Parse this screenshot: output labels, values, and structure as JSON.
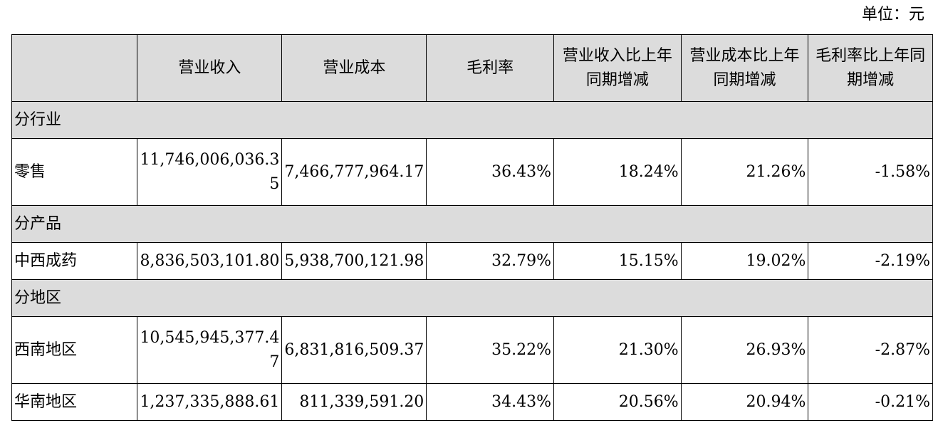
{
  "unit_label": "单位：元",
  "headers": [
    "",
    "营业收入",
    "营业成本",
    "毛利率",
    "营业收入比上年同期增减",
    "营业成本比上年同期增减",
    "毛利率比上年同期增减"
  ],
  "sections": [
    {
      "title": "分行业",
      "rows": [
        {
          "label": "零售",
          "revenue": "11,746,006,036.35",
          "cost": "7,466,777,964.17",
          "margin": "36.43%",
          "rev_change": "18.24%",
          "cost_change": "21.26%",
          "margin_change": "-1.58%"
        }
      ]
    },
    {
      "title": "分产品",
      "rows": [
        {
          "label": "中西成药",
          "revenue": "8,836,503,101.80",
          "cost": "5,938,700,121.98",
          "margin": "32.79%",
          "rev_change": "15.15%",
          "cost_change": "19.02%",
          "margin_change": "-2.19%"
        }
      ]
    },
    {
      "title": "分地区",
      "rows": [
        {
          "label": "西南地区",
          "revenue": "10,545,945,377.47",
          "cost": "6,831,816,509.37",
          "margin": "35.22%",
          "rev_change": "21.30%",
          "cost_change": "26.93%",
          "margin_change": "-2.87%"
        },
        {
          "label": "华南地区",
          "revenue": "1,237,335,888.61",
          "cost": "811,339,591.20",
          "margin": "34.43%",
          "rev_change": "20.56%",
          "cost_change": "20.94%",
          "margin_change": "-0.21%"
        }
      ]
    }
  ]
}
